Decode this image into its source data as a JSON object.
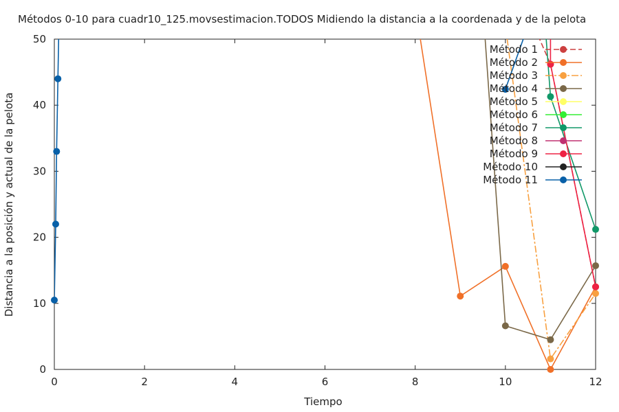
{
  "chart_data": {
    "type": "line",
    "title": "Métodos 0-10 para cuadr10_125.movsestimacion.TODOS Midiendo la distancia a la coordenada y de la pelota",
    "xlabel": "Tiempo",
    "ylabel": "Distancia a la posición y actual de la pelota",
    "xlim": [
      0,
      12
    ],
    "ylim": [
      0,
      50
    ],
    "xticks": [
      "0",
      "2",
      "4",
      "6",
      "8",
      "10",
      "12"
    ],
    "yticks": [
      "0",
      "10",
      "20",
      "30",
      "40",
      "50"
    ],
    "legend_position": "top-right",
    "series": [
      {
        "name": "Método 1",
        "color": "#cc4040",
        "dash": "8,4",
        "points": [
          [
            10,
            62
          ],
          [
            11,
            46.2
          ],
          [
            12,
            12.5
          ]
        ]
      },
      {
        "name": "Método 2",
        "color": "#f07028",
        "dash": "",
        "points": [
          [
            8,
            55
          ],
          [
            9,
            11.1
          ],
          [
            10,
            15.6
          ],
          [
            11,
            0
          ],
          [
            12,
            12.5
          ]
        ]
      },
      {
        "name": "Método 3",
        "color": "#f8a040",
        "dash": "10,3,3,3",
        "points": [
          [
            10,
            52
          ],
          [
            11,
            1.6
          ],
          [
            12,
            11.5
          ]
        ]
      },
      {
        "name": "Método 4",
        "color": "#7a6848",
        "dash": "",
        "points": [
          [
            9.5,
            55
          ],
          [
            10,
            6.6
          ],
          [
            11,
            4.5
          ],
          [
            12,
            15.7
          ]
        ]
      },
      {
        "name": "Método 5",
        "color": "#ffff66",
        "dash": "",
        "points": []
      },
      {
        "name": "Método 6",
        "color": "#33ee33",
        "dash": "",
        "points": []
      },
      {
        "name": "Método 7",
        "color": "#109868",
        "dash": "",
        "points": [
          [
            10.85,
            55
          ],
          [
            11,
            41.3
          ],
          [
            12,
            21.2
          ]
        ]
      },
      {
        "name": "Método 8",
        "color": "#c03070",
        "dash": "",
        "points": []
      },
      {
        "name": "Método 9",
        "color": "#ee2244",
        "dash": "",
        "points": [
          [
            11,
            51
          ],
          [
            11,
            46.2
          ],
          [
            12,
            12.5
          ]
        ]
      },
      {
        "name": "Método 10",
        "color": "#222222",
        "dash": "",
        "points": []
      },
      {
        "name": "Método 11",
        "color": "#0860a8",
        "dash": "",
        "points": [
          [
            0,
            10.5
          ],
          [
            0.03,
            22
          ],
          [
            0.05,
            33
          ],
          [
            0.08,
            44
          ],
          [
            0.1,
            52
          ]
        ],
        "extra_segments": [
          [
            [
              10,
              42.4
            ],
            [
              10.5,
              52
            ]
          ]
        ]
      }
    ]
  }
}
